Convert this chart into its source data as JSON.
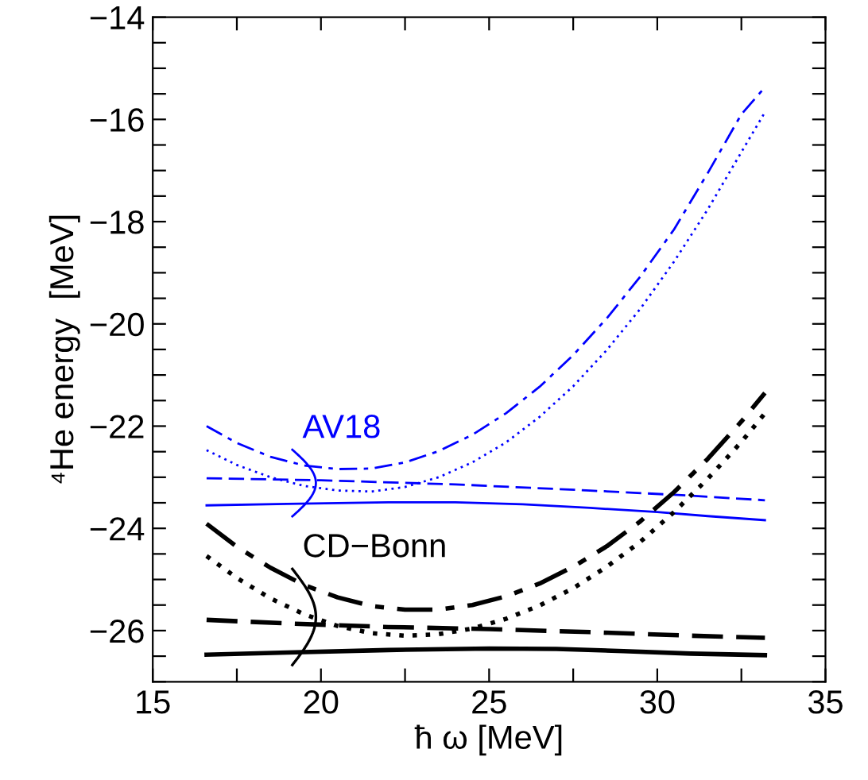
{
  "chart_data": {
    "type": "line",
    "xlabel": "ħ ω [MeV]",
    "ylabel": "⁴He energy  [MeV]",
    "xlim": [
      15,
      35
    ],
    "ylim": [
      -27,
      -14
    ],
    "xticks": [
      15,
      {
        "value": 17.5,
        "label": null
      },
      20,
      {
        "value": 22.5,
        "label": null
      },
      25,
      {
        "value": 27.5,
        "label": null
      },
      30,
      {
        "value": 32.5,
        "label": null
      },
      35
    ],
    "yticks": [
      {
        "value": -27,
        "label": null
      },
      {
        "value": -26.5,
        "label": null
      },
      -26,
      {
        "value": -25.5,
        "label": null
      },
      {
        "value": -25,
        "label": null
      },
      {
        "value": -24.5,
        "label": null
      },
      -24,
      {
        "value": -23.5,
        "label": null
      },
      {
        "value": -23,
        "label": null
      },
      {
        "value": -22.5,
        "label": null
      },
      -22,
      {
        "value": -21.5,
        "label": null
      },
      {
        "value": -21,
        "label": null
      },
      {
        "value": -20.5,
        "label": null
      },
      -20,
      {
        "value": -19.5,
        "label": null
      },
      {
        "value": -19,
        "label": null
      },
      {
        "value": -18.5,
        "label": null
      },
      -18,
      {
        "value": -17.5,
        "label": null
      },
      {
        "value": -17,
        "label": null
      },
      {
        "value": -16.5,
        "label": null
      },
      -16,
      {
        "value": -15.5,
        "label": null
      },
      {
        "value": -15,
        "label": null
      },
      {
        "value": -14.5,
        "label": null
      },
      -14
    ],
    "grid": false,
    "legend": false,
    "series": [
      {
        "color": "#0000ff",
        "line_style": "dashdot",
        "x": [
          16.6,
          17.5,
          18.5,
          19.5,
          20.5,
          21.5,
          22.5,
          23.5,
          24.5,
          25.5,
          26.5,
          27.5,
          28.5,
          29.5,
          30.5,
          31.5,
          32.5,
          33.2
        ],
        "values": [
          -22.0,
          -22.33,
          -22.6,
          -22.77,
          -22.84,
          -22.83,
          -22.71,
          -22.49,
          -22.17,
          -21.75,
          -21.23,
          -20.61,
          -19.89,
          -19.07,
          -18.15,
          -17.05,
          -15.9,
          -15.37
        ]
      },
      {
        "color": "#0000ff",
        "line_style": "dotted",
        "x": [
          16.6,
          17.5,
          18.5,
          19.5,
          20.5,
          21.5,
          22.5,
          23.5,
          24.5,
          25.5,
          26.5,
          27.5,
          28.5,
          29.5,
          30.5,
          31.5,
          32.5,
          33.2
        ],
        "values": [
          -22.47,
          -22.76,
          -23.0,
          -23.17,
          -23.26,
          -23.28,
          -23.19,
          -23.0,
          -22.71,
          -22.32,
          -21.82,
          -21.22,
          -20.51,
          -19.7,
          -18.78,
          -17.76,
          -16.64,
          -15.86
        ]
      },
      {
        "color": "#0000ff",
        "line_style": "dashed",
        "x": [
          16.6,
          20,
          24,
          28,
          31,
          33.2
        ],
        "values": [
          -23.02,
          -23.06,
          -23.14,
          -23.26,
          -23.36,
          -23.45
        ]
      },
      {
        "color": "#0000ff",
        "line_style": "solid",
        "x": [
          16.6,
          19,
          22,
          24,
          26,
          28,
          30,
          31.5,
          33.2
        ],
        "values": [
          -23.55,
          -23.52,
          -23.49,
          -23.49,
          -23.53,
          -23.6,
          -23.68,
          -23.76,
          -23.84
        ]
      },
      {
        "color": "#000000",
        "line_style": "dashdot",
        "x": [
          16.6,
          17.5,
          18.5,
          19.5,
          20.5,
          21.5,
          22.5,
          23.5,
          24.5,
          25.5,
          26.5,
          27.5,
          28.5,
          29.5,
          30.5,
          31.5,
          32.5,
          33.2
        ],
        "values": [
          -23.91,
          -24.36,
          -24.77,
          -25.11,
          -25.35,
          -25.52,
          -25.59,
          -25.59,
          -25.5,
          -25.33,
          -25.08,
          -24.75,
          -24.35,
          -23.86,
          -23.29,
          -22.64,
          -21.91,
          -21.35
        ]
      },
      {
        "color": "#000000",
        "line_style": "dotted",
        "x": [
          16.6,
          17.5,
          18.5,
          19.5,
          20.5,
          21.5,
          22.5,
          23.5,
          24.5,
          25.5,
          26.5,
          27.5,
          28.5,
          29.5,
          30.5,
          31.5,
          32.5,
          33.2
        ],
        "values": [
          -24.54,
          -24.97,
          -25.37,
          -25.68,
          -25.91,
          -26.05,
          -26.1,
          -26.07,
          -25.96,
          -25.77,
          -25.51,
          -25.17,
          -24.75,
          -24.26,
          -23.68,
          -23.03,
          -22.31,
          -21.75
        ]
      },
      {
        "color": "#000000",
        "line_style": "dashed",
        "x": [
          16.6,
          19,
          22,
          25,
          28,
          31,
          33.2
        ],
        "values": [
          -25.79,
          -25.86,
          -25.93,
          -25.97,
          -26.03,
          -26.1,
          -26.14
        ]
      },
      {
        "color": "#000000",
        "line_style": "solid",
        "x": [
          16.6,
          19,
          22,
          25,
          27,
          29,
          31,
          33.2
        ],
        "values": [
          -26.47,
          -26.43,
          -26.38,
          -26.35,
          -26.36,
          -26.4,
          -26.45,
          -26.48
        ]
      }
    ],
    "annotations": [
      "AV18",
      "CD−Bonn"
    ]
  }
}
